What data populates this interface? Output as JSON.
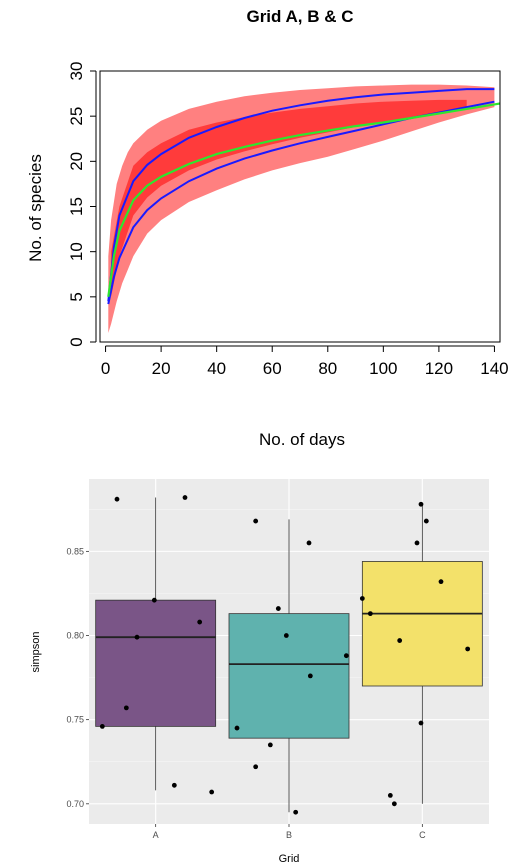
{
  "colors": {
    "outer_band": "#ff8080",
    "inner_band": "#ff3b3b",
    "observed_line": "#1a1aff",
    "model_line": "#2ee62e",
    "panel_bg": "#ebebeb",
    "grid_major": "#ffffff",
    "box_A": "#7a5587",
    "box_B": "#5fb2ae",
    "box_C": "#f3e16a"
  },
  "chart_data": [
    {
      "type": "line",
      "title": "Grid A, B & C",
      "xlabel": "No. of days",
      "ylabel": "No. of species",
      "xlim": [
        -2,
        142
      ],
      "ylim": [
        0,
        30
      ],
      "xticks": [
        "0",
        "20",
        "40",
        "60",
        "80",
        "100",
        "120",
        "140"
      ],
      "yticks": [
        "0",
        "5",
        "10",
        "15",
        "20",
        "25",
        "30"
      ],
      "grid": false,
      "series": [
        {
          "role": "outer_band",
          "x": [
            1,
            2,
            4,
            6,
            8,
            10,
            15,
            20,
            30,
            40,
            50,
            60,
            70,
            80,
            90,
            100,
            110,
            120,
            130,
            140
          ],
          "y_upper": [
            9.5,
            13.5,
            17.5,
            19.5,
            21,
            22,
            23.5,
            24.5,
            25.8,
            26.6,
            27.2,
            27.6,
            27.9,
            28.1,
            28.3,
            28.4,
            28.5,
            28.5,
            28.4,
            28.2
          ],
          "y_lower": [
            1,
            2,
            4.5,
            6.5,
            8,
            9.5,
            12,
            13.5,
            15.5,
            16.8,
            18,
            19,
            19.8,
            20.5,
            21.4,
            22.3,
            23.3,
            24.3,
            25.2,
            26
          ]
        },
        {
          "role": "inner_band",
          "x": [
            2,
            5,
            10,
            15,
            20,
            30,
            40,
            50,
            60,
            70,
            80,
            90,
            100,
            110,
            120,
            130
          ],
          "y_upper": [
            10,
            15,
            19.5,
            21,
            22,
            23.5,
            24.3,
            24.9,
            25.4,
            25.8,
            26.1,
            26.4,
            26.6,
            26.7,
            26.8,
            26.8
          ],
          "y_lower": [
            5,
            9.5,
            14,
            16,
            17.3,
            19,
            20.2,
            21.1,
            21.9,
            22.6,
            23.2,
            23.8,
            24.3,
            24.8,
            25.3,
            25.8
          ]
        },
        {
          "role": "observed_upper",
          "x": [
            1,
            3,
            5,
            10,
            15,
            20,
            30,
            40,
            50,
            60,
            70,
            80,
            90,
            100,
            110,
            120,
            130,
            140
          ],
          "y": [
            4.5,
            10.5,
            14,
            17.8,
            19.6,
            20.8,
            22.6,
            23.8,
            24.8,
            25.6,
            26.2,
            26.7,
            27.1,
            27.4,
            27.6,
            27.8,
            28,
            28
          ]
        },
        {
          "role": "observed_lower",
          "x": [
            1,
            3,
            5,
            10,
            15,
            20,
            30,
            40,
            50,
            60,
            70,
            80,
            90,
            100,
            110,
            120,
            130,
            140
          ],
          "y": [
            4.2,
            7.2,
            9.3,
            12.7,
            14.6,
            15.9,
            17.8,
            19.2,
            20.3,
            21.2,
            22,
            22.7,
            23.4,
            24.1,
            24.8,
            25.4,
            26,
            26.6
          ]
        },
        {
          "role": "model",
          "x": [
            1,
            3,
            5,
            10,
            15,
            20,
            30,
            40,
            50,
            60,
            70,
            80,
            90,
            100,
            110,
            120,
            130,
            140,
            142
          ],
          "y": [
            5,
            9.5,
            12.3,
            15.7,
            17.3,
            18.3,
            19.7,
            20.8,
            21.6,
            22.3,
            22.9,
            23.4,
            23.9,
            24.3,
            24.8,
            25.3,
            25.8,
            26.3,
            26.4
          ]
        }
      ]
    },
    {
      "type": "box",
      "xlabel": "Grid",
      "ylabel": "simpson",
      "ylim": [
        0.688,
        0.893
      ],
      "yticks": [
        "0.70",
        "0.75",
        "0.80",
        "0.85"
      ],
      "categories": [
        "A",
        "B",
        "C"
      ],
      "grid": true,
      "boxes": [
        {
          "name": "A",
          "whisker_low": 0.708,
          "q1": 0.746,
          "median": 0.799,
          "q3": 0.821,
          "whisker_high": 0.882
        },
        {
          "name": "B",
          "whisker_low": 0.695,
          "q1": 0.739,
          "median": 0.783,
          "q3": 0.813,
          "whisker_high": 0.869
        },
        {
          "name": "C",
          "whisker_low": 0.7,
          "q1": 0.77,
          "median": 0.813,
          "q3": 0.844,
          "whisker_high": 0.878
        }
      ],
      "points": [
        {
          "group": "A",
          "dx": -0.4,
          "y": 0.746
        },
        {
          "group": "A",
          "dx": -0.29,
          "y": 0.881
        },
        {
          "group": "A",
          "dx": -0.22,
          "y": 0.757
        },
        {
          "group": "A",
          "dx": -0.14,
          "y": 0.799
        },
        {
          "group": "A",
          "dx": -0.01,
          "y": 0.821
        },
        {
          "group": "A",
          "dx": 0.14,
          "y": 0.711
        },
        {
          "group": "A",
          "dx": 0.22,
          "y": 0.882
        },
        {
          "group": "A",
          "dx": 0.33,
          "y": 0.808
        },
        {
          "group": "A",
          "dx": 0.42,
          "y": 0.707
        },
        {
          "group": "B",
          "dx": -0.25,
          "y": 0.868
        },
        {
          "group": "B",
          "dx": -0.25,
          "y": 0.722
        },
        {
          "group": "B",
          "dx": -0.39,
          "y": 0.745
        },
        {
          "group": "B",
          "dx": -0.14,
          "y": 0.735
        },
        {
          "group": "B",
          "dx": -0.02,
          "y": 0.8
        },
        {
          "group": "B",
          "dx": -0.08,
          "y": 0.816
        },
        {
          "group": "B",
          "dx": 0.05,
          "y": 0.695
        },
        {
          "group": "B",
          "dx": 0.15,
          "y": 0.855
        },
        {
          "group": "B",
          "dx": 0.16,
          "y": 0.776
        },
        {
          "group": "B",
          "dx": 0.43,
          "y": 0.788
        },
        {
          "group": "C",
          "dx": -0.45,
          "y": 0.822
        },
        {
          "group": "C",
          "dx": -0.39,
          "y": 0.813
        },
        {
          "group": "C",
          "dx": -0.24,
          "y": 0.705
        },
        {
          "group": "C",
          "dx": -0.21,
          "y": 0.7
        },
        {
          "group": "C",
          "dx": -0.17,
          "y": 0.797
        },
        {
          "group": "C",
          "dx": -0.04,
          "y": 0.855
        },
        {
          "group": "C",
          "dx": -0.01,
          "y": 0.878
        },
        {
          "group": "C",
          "dx": -0.01,
          "y": 0.748
        },
        {
          "group": "C",
          "dx": 0.03,
          "y": 0.868
        },
        {
          "group": "C",
          "dx": 0.14,
          "y": 0.832
        },
        {
          "group": "C",
          "dx": 0.34,
          "y": 0.792
        }
      ]
    }
  ]
}
